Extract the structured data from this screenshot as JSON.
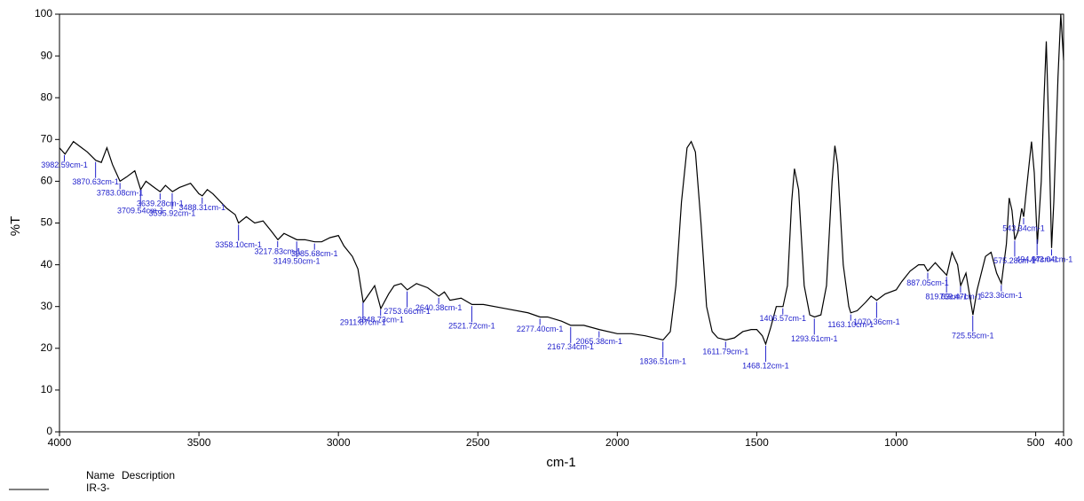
{
  "chart_data": {
    "type": "line",
    "xlabel": "cm-1",
    "ylabel": "%T",
    "xlim": [
      4000,
      400
    ],
    "ylim": [
      0,
      100
    ],
    "xticks": [
      4000,
      3500,
      3000,
      2500,
      2000,
      1500,
      1000,
      500,
      400
    ],
    "yticks": [
      0,
      10,
      20,
      30,
      40,
      50,
      60,
      70,
      80,
      90,
      100
    ],
    "grid": false,
    "legend_header": [
      "Name",
      "Description"
    ],
    "x": [
      4000,
      3980,
      3950,
      3920,
      3900,
      3870,
      3850,
      3830,
      3810,
      3783,
      3760,
      3730,
      3709,
      3690,
      3660,
      3639,
      3620,
      3595,
      3570,
      3530,
      3500,
      3488,
      3470,
      3450,
      3400,
      3370,
      3358,
      3330,
      3300,
      3270,
      3240,
      3217,
      3195,
      3149,
      3120,
      3085,
      3060,
      3030,
      3000,
      2980,
      2950,
      2930,
      2911,
      2880,
      2870,
      2848,
      2820,
      2800,
      2775,
      2753,
      2720,
      2680,
      2640,
      2620,
      2600,
      2560,
      2521,
      2480,
      2400,
      2320,
      2277,
      2250,
      2200,
      2167,
      2120,
      2065,
      2000,
      1950,
      1900,
      1836,
      1810,
      1790,
      1770,
      1750,
      1735,
      1720,
      1700,
      1680,
      1660,
      1640,
      1611,
      1580,
      1550,
      1520,
      1500,
      1480,
      1468,
      1450,
      1430,
      1406,
      1390,
      1375,
      1365,
      1350,
      1330,
      1310,
      1293,
      1270,
      1250,
      1230,
      1220,
      1210,
      1190,
      1170,
      1163,
      1140,
      1110,
      1090,
      1070,
      1040,
      1000,
      980,
      950,
      920,
      900,
      887,
      860,
      840,
      819,
      800,
      780,
      769,
      750,
      735,
      725,
      710,
      680,
      660,
      640,
      623,
      605,
      595,
      585,
      575,
      563,
      550,
      543,
      530,
      515,
      505,
      494,
      480,
      470,
      462,
      452,
      443,
      435,
      420,
      410,
      400
    ],
    "series": [
      {
        "name": "IR-3-",
        "color": "#000000",
        "values": [
          68,
          66.5,
          69.5,
          68,
          67,
          65,
          64.5,
          68,
          64,
          60,
          61,
          62.5,
          58,
          60,
          58.5,
          57.5,
          59,
          57.5,
          58.5,
          59.5,
          57,
          56.5,
          58,
          57,
          53.5,
          52,
          50,
          51.5,
          50,
          50.5,
          48,
          46,
          47.5,
          46,
          46,
          45.5,
          45.5,
          46.5,
          47,
          44.5,
          42,
          39,
          31,
          34,
          35,
          29.5,
          33,
          35,
          35.5,
          34,
          35.5,
          34.5,
          32.5,
          33.5,
          31.5,
          32,
          30.5,
          30.5,
          29.5,
          28.5,
          27.5,
          27.5,
          26.5,
          25.5,
          25.5,
          24.5,
          23.5,
          23.5,
          23,
          22,
          24,
          35,
          55,
          68,
          69.5,
          67,
          50,
          30,
          24,
          22.5,
          22,
          22.5,
          24,
          24.5,
          24.5,
          23,
          21,
          25,
          30,
          30,
          35,
          55,
          63,
          58,
          35,
          28,
          27.5,
          28,
          35,
          60,
          68.5,
          64,
          40,
          30,
          28.5,
          29,
          31,
          32.5,
          31.5,
          33,
          34,
          36,
          38.5,
          40,
          40,
          38.5,
          40.5,
          39,
          37.5,
          43,
          40,
          35,
          38,
          32,
          28,
          34,
          42,
          43,
          38,
          35.5,
          45,
          56,
          53,
          46,
          48,
          53.5,
          51.5,
          60,
          69.5,
          62,
          45,
          60,
          80,
          93.5,
          70,
          44,
          55,
          85,
          100,
          89
        ]
      }
    ],
    "annotations": [
      {
        "x": 3982.59,
        "label": "3982.59cm-1"
      },
      {
        "x": 3870.63,
        "label": "3870.63cm-1"
      },
      {
        "x": 3783.08,
        "label": "3783.08cm-1"
      },
      {
        "x": 3709.54,
        "label": "3709.54cm-1"
      },
      {
        "x": 3639.28,
        "label": "3639.28cm-1"
      },
      {
        "x": 3595.92,
        "label": "3595.92cm-1"
      },
      {
        "x": 3488.31,
        "label": "3488.31cm-1"
      },
      {
        "x": 3358.1,
        "label": "3358.10cm-1"
      },
      {
        "x": 3217.83,
        "label": "3217.83cm-1"
      },
      {
        "x": 3149.5,
        "label": "3149.50cm-1"
      },
      {
        "x": 3085.68,
        "label": "3085.68cm-1"
      },
      {
        "x": 2911.87,
        "label": "2911.87cm-1"
      },
      {
        "x": 2848.73,
        "label": "2848.73cm-1"
      },
      {
        "x": 2753.66,
        "label": "2753.66cm-1"
      },
      {
        "x": 2640.38,
        "label": "2640.38cm-1"
      },
      {
        "x": 2521.72,
        "label": "2521.72cm-1"
      },
      {
        "x": 2277.4,
        "label": "2277.40cm-1"
      },
      {
        "x": 2167.34,
        "label": "2167.34cm-1"
      },
      {
        "x": 2065.38,
        "label": "2065.38cm-1"
      },
      {
        "x": 1836.51,
        "label": "1836.51cm-1"
      },
      {
        "x": 1611.79,
        "label": "1611.79cm-1"
      },
      {
        "x": 1468.12,
        "label": "1468.12cm-1"
      },
      {
        "x": 1406.57,
        "label": "1406.57cm-1"
      },
      {
        "x": 1293.61,
        "label": "1293.61cm-1"
      },
      {
        "x": 1163.1,
        "label": "1163.10cm-1"
      },
      {
        "x": 1070.36,
        "label": "1070.36cm-1"
      },
      {
        "x": 887.05,
        "label": "887.05cm-1"
      },
      {
        "x": 819.63,
        "label": "819.63cm-1"
      },
      {
        "x": 769.47,
        "label": "769.47cm-1"
      },
      {
        "x": 725.55,
        "label": "725.55cm-1"
      },
      {
        "x": 623.36,
        "label": "623.36cm-1"
      },
      {
        "x": 575.28,
        "label": "575.28cm-1"
      },
      {
        "x": 543.34,
        "label": "543.34cm-1"
      },
      {
        "x": 494.97,
        "label": "494.97cm-1"
      },
      {
        "x": 443.04,
        "label": "443.04cm-1"
      }
    ]
  }
}
